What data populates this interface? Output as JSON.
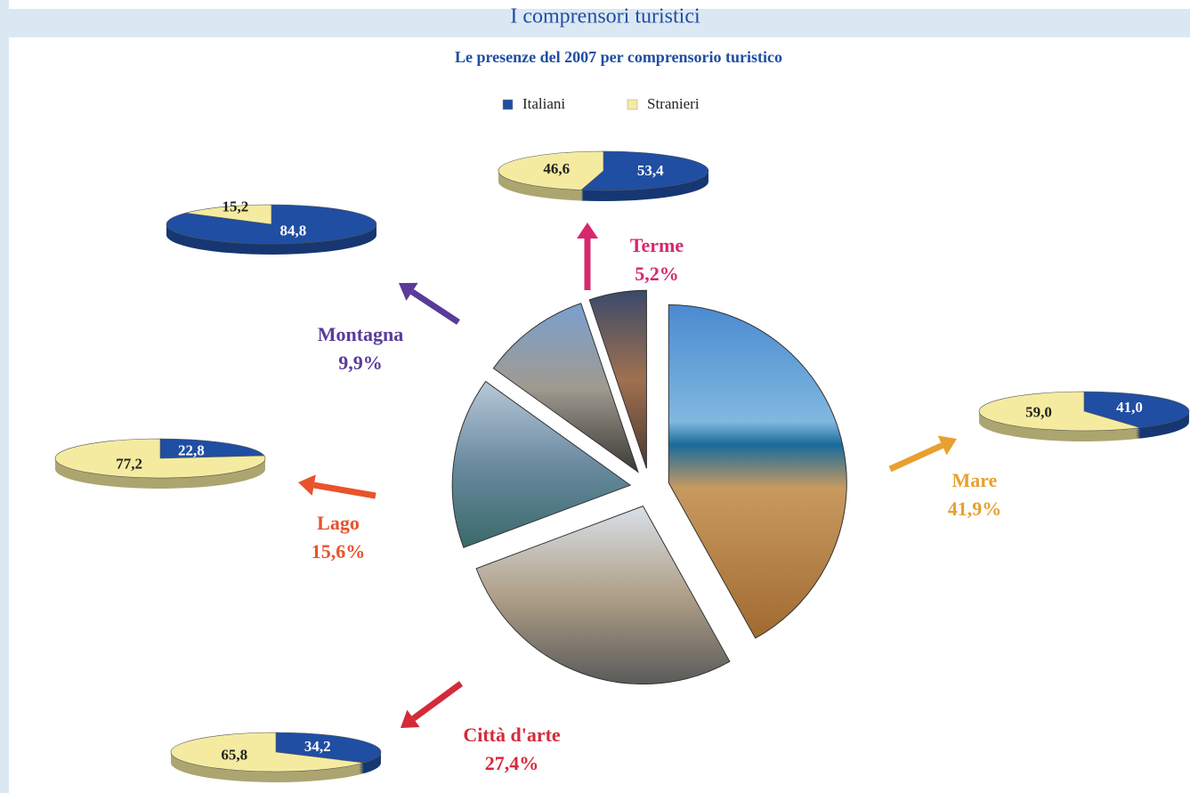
{
  "header": {
    "title": "I comprensori turistici"
  },
  "chart_data": {
    "type": "pie",
    "title": "Le presenze del 2007 per comprensorio turistico",
    "categories": [
      "Terme",
      "Montagna",
      "Lago",
      "Città d'arte",
      "Mare"
    ],
    "values": [
      5.2,
      9.9,
      15.6,
      27.4,
      41.9
    ],
    "value_labels": [
      "5,2%",
      "9,9%",
      "15,6%",
      "27,4%",
      "41,9%"
    ],
    "colors": [
      "#d6286e",
      "#5a3a9a",
      "#e8532a",
      "#d42a3a",
      "#e8a030"
    ],
    "series": [
      {
        "name": "Italiani",
        "color": "#1f4ea3",
        "values": [
          53.4,
          84.8,
          22.8,
          34.2,
          41.0
        ],
        "value_labels": [
          "53,4",
          "84,8",
          "22,8",
          "34,2",
          "41,0"
        ]
      },
      {
        "name": "Stranieri",
        "color": "#f5eba0",
        "values": [
          46.6,
          15.2,
          77.2,
          65.8,
          59.0
        ],
        "value_labels": [
          "46,6",
          "15,2",
          "77,2",
          "65,8",
          "59,0"
        ]
      }
    ]
  }
}
